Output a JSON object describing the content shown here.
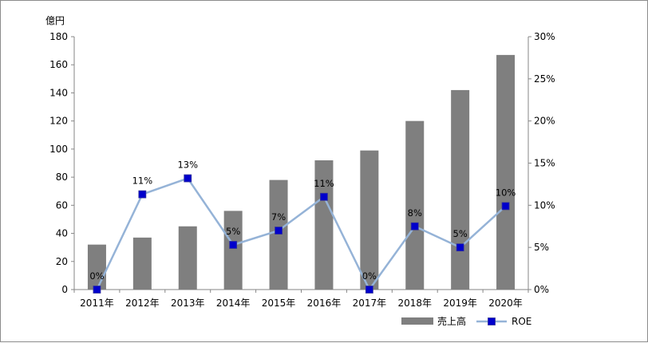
{
  "chart_data": {
    "type": "bar",
    "y_unit_label": "億円",
    "categories": [
      "2011年",
      "2012年",
      "2013年",
      "2014年",
      "2015年",
      "2016年",
      "2017年",
      "2018年",
      "2019年",
      "2020年"
    ],
    "series": [
      {
        "name": "売上高",
        "type": "bar",
        "axis": "left",
        "color": "#7f7f7f",
        "values": [
          32,
          37,
          45,
          56,
          78,
          92,
          99,
          120,
          142,
          167
        ]
      },
      {
        "name": "ROE",
        "type": "line",
        "axis": "right",
        "color": "#95b3d7",
        "marker_color": "#0000cc",
        "values": [
          0.0,
          0.113,
          0.132,
          0.053,
          0.07,
          0.11,
          0.0,
          0.075,
          0.05,
          0.099
        ],
        "data_labels": [
          "0%",
          "11%",
          "13%",
          "5%",
          "7%",
          "11%",
          "0%",
          "8%",
          "5%",
          "10%"
        ]
      }
    ],
    "y_left": {
      "min": 0,
      "max": 180,
      "ticks": [
        "0",
        "20",
        "40",
        "60",
        "80",
        "100",
        "120",
        "140",
        "160",
        "180"
      ]
    },
    "y_right": {
      "min": 0,
      "max": 0.3,
      "ticks": [
        "0%",
        "5%",
        "10%",
        "15%",
        "20%",
        "25%",
        "30%"
      ]
    },
    "grid": false,
    "legend_position": "bottom-right"
  }
}
